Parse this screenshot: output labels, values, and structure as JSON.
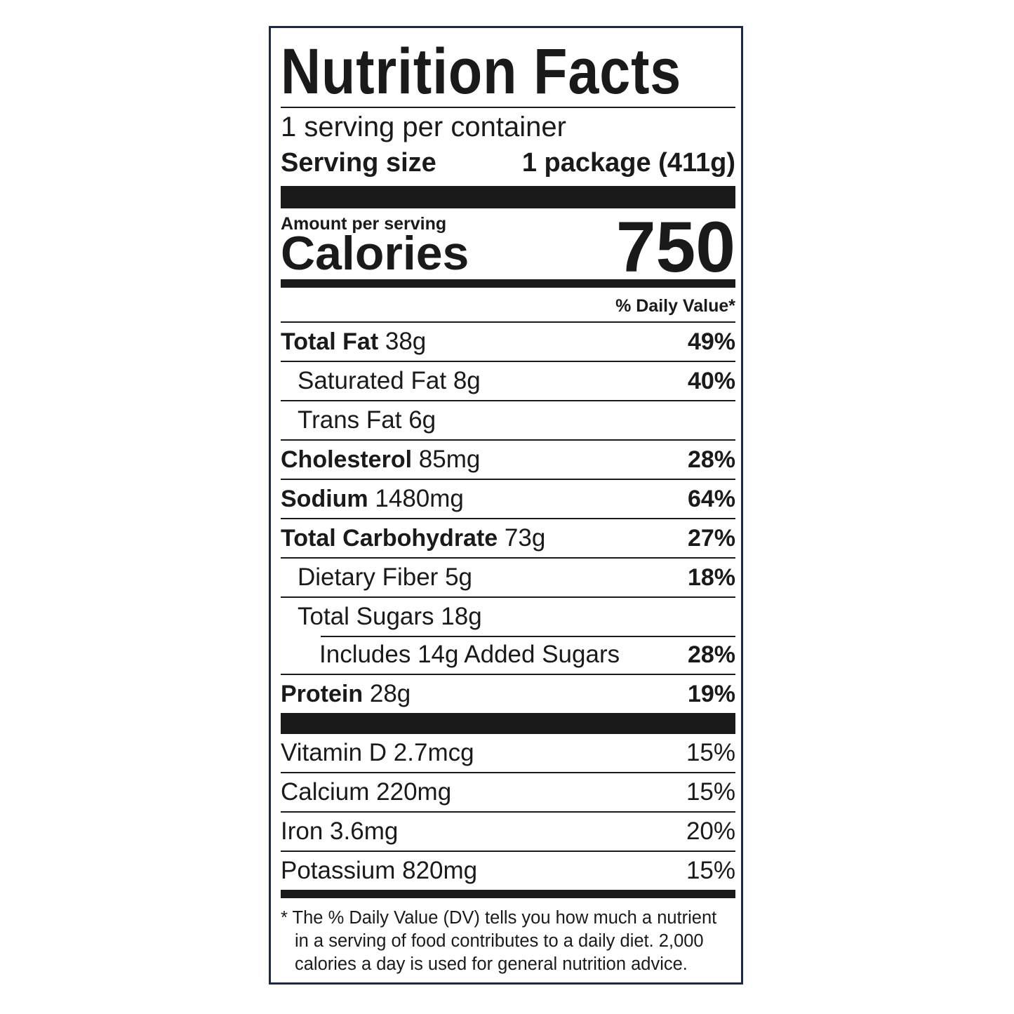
{
  "title": "Nutrition Facts",
  "servings": "1 serving per container",
  "serving_size": {
    "label": "Serving size",
    "value": "1 package (411g)"
  },
  "amount_per_serving": "Amount per serving",
  "calories": {
    "label": "Calories",
    "value": "750"
  },
  "daily_value_header": "% Daily Value*",
  "nutrients": [
    {
      "name": "Total Fat",
      "amount": "38g",
      "dv": "49%"
    },
    {
      "name": "Saturated Fat",
      "amount": "8g",
      "dv": "40%"
    },
    {
      "name": "Trans Fat",
      "amount": "6g"
    },
    {
      "name": "Cholesterol",
      "amount": "85mg",
      "dv": "28%"
    },
    {
      "name": "Sodium",
      "amount": "1480mg",
      "dv": "64%"
    },
    {
      "name": "Total Carbohydrate",
      "amount": "73g",
      "dv": "27%"
    },
    {
      "name": "Dietary Fiber",
      "amount": "5g",
      "dv": "18%"
    },
    {
      "name": "Total Sugars",
      "amount": "18g"
    },
    {
      "name": "Includes 14g Added Sugars",
      "dv": "28%"
    },
    {
      "name": "Protein",
      "amount": "28g",
      "dv": "19%"
    }
  ],
  "vitamins": [
    {
      "name": "Vitamin D 2.7mcg",
      "dv": "15%"
    },
    {
      "name": "Calcium 220mg",
      "dv": "15%"
    },
    {
      "name": "Iron 3.6mg",
      "dv": "20%"
    },
    {
      "name": "Potassium 820mg",
      "dv": "15%"
    }
  ],
  "footnote": "* The % Daily Value (DV) tells you how much a nutrient in a serving of food contributes to a daily diet. 2,000 calories a day is used for general nutrition advice."
}
